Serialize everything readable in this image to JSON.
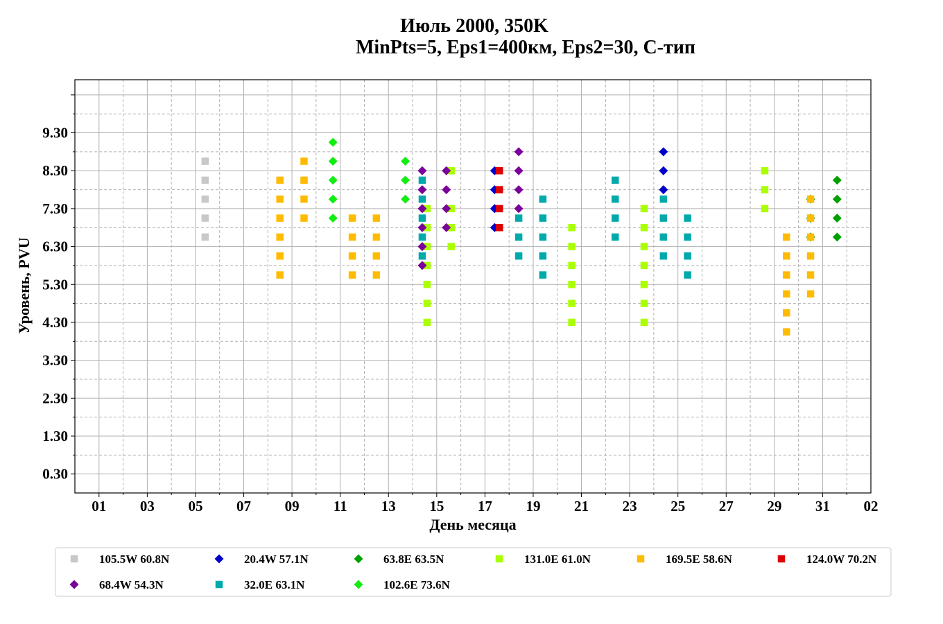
{
  "chart_data": {
    "type": "scatter",
    "title_line1": "Июль 2000, 350K",
    "title_line2": "MinPts=5, Eps1=400км, Eps2=30, С-тип",
    "xlabel": "День месяца",
    "ylabel": "Уровень, PVU",
    "x_ticks": [
      "01",
      "03",
      "05",
      "07",
      "09",
      "11",
      "13",
      "15",
      "17",
      "19",
      "21",
      "23",
      "25",
      "27",
      "29",
      "31",
      "02"
    ],
    "y_ticks": [
      "0.30",
      "1.30",
      "2.30",
      "3.30",
      "4.30",
      "5.30",
      "6.30",
      "7.30",
      "8.30",
      "9.30"
    ],
    "xlim": [
      0,
      33
    ],
    "ylim": [
      -0.2,
      10.7
    ],
    "grid": true,
    "legend_position": "bottom",
    "series": [
      {
        "name": "105.5W 60.8N",
        "marker": "square",
        "color": "#c8c8c8",
        "points": [
          [
            5.4,
            6.55
          ],
          [
            5.4,
            7.05
          ],
          [
            5.4,
            7.55
          ],
          [
            5.4,
            8.05
          ],
          [
            5.4,
            8.55
          ]
        ]
      },
      {
        "name": "20.4W 57.1N",
        "marker": "diamond",
        "color": "#0000cc",
        "points": [
          [
            17.4,
            6.8
          ],
          [
            17.4,
            7.3
          ],
          [
            17.4,
            7.8
          ],
          [
            17.4,
            8.3
          ],
          [
            24.4,
            7.8
          ],
          [
            24.4,
            8.3
          ],
          [
            24.4,
            8.8
          ]
        ]
      },
      {
        "name": "63.8E 63.5N",
        "marker": "diamond",
        "color": "#00a000",
        "points": [
          [
            30.5,
            6.55
          ],
          [
            30.5,
            7.05
          ],
          [
            30.5,
            7.55
          ],
          [
            31.6,
            6.55
          ],
          [
            31.6,
            7.05
          ],
          [
            31.6,
            7.55
          ],
          [
            31.6,
            8.05
          ]
        ]
      },
      {
        "name": "131.0E 61.0N",
        "marker": "square",
        "color": "#aaff00",
        "points": [
          [
            14.6,
            4.3
          ],
          [
            14.6,
            4.8
          ],
          [
            14.6,
            5.3
          ],
          [
            14.6,
            5.8
          ],
          [
            14.6,
            6.3
          ],
          [
            14.6,
            6.8
          ],
          [
            14.6,
            7.3
          ],
          [
            15.6,
            6.3
          ],
          [
            15.6,
            6.8
          ],
          [
            15.6,
            7.3
          ],
          [
            15.6,
            8.3
          ],
          [
            20.6,
            4.3
          ],
          [
            20.6,
            4.8
          ],
          [
            20.6,
            5.3
          ],
          [
            20.6,
            5.8
          ],
          [
            20.6,
            6.3
          ],
          [
            20.6,
            6.8
          ],
          [
            23.6,
            4.3
          ],
          [
            23.6,
            4.8
          ],
          [
            23.6,
            5.3
          ],
          [
            23.6,
            5.8
          ],
          [
            23.6,
            6.3
          ],
          [
            23.6,
            6.8
          ],
          [
            23.6,
            7.3
          ],
          [
            28.6,
            7.3
          ],
          [
            28.6,
            7.8
          ],
          [
            28.6,
            8.3
          ]
        ]
      },
      {
        "name": "169.5E 58.6N",
        "marker": "square",
        "color": "#ffbb00",
        "points": [
          [
            8.5,
            5.55
          ],
          [
            8.5,
            6.05
          ],
          [
            8.5,
            6.55
          ],
          [
            8.5,
            7.05
          ],
          [
            8.5,
            7.55
          ],
          [
            8.5,
            8.05
          ],
          [
            9.5,
            7.05
          ],
          [
            9.5,
            7.55
          ],
          [
            9.5,
            8.05
          ],
          [
            9.5,
            8.55
          ],
          [
            11.5,
            5.55
          ],
          [
            11.5,
            6.05
          ],
          [
            11.5,
            6.55
          ],
          [
            11.5,
            7.05
          ],
          [
            12.5,
            5.55
          ],
          [
            12.5,
            6.05
          ],
          [
            12.5,
            6.55
          ],
          [
            12.5,
            7.05
          ],
          [
            29.5,
            4.05
          ],
          [
            29.5,
            4.55
          ],
          [
            29.5,
            5.05
          ],
          [
            29.5,
            5.55
          ],
          [
            29.5,
            6.05
          ],
          [
            29.5,
            6.55
          ],
          [
            30.5,
            5.05
          ],
          [
            30.5,
            5.55
          ],
          [
            30.5,
            6.05
          ],
          [
            30.5,
            6.55
          ],
          [
            30.5,
            7.05
          ],
          [
            30.5,
            7.55
          ]
        ]
      },
      {
        "name": "124.0W 70.2N",
        "marker": "square",
        "color": "#dd0000",
        "points": [
          [
            17.6,
            6.8
          ],
          [
            17.6,
            7.3
          ],
          [
            17.6,
            7.8
          ],
          [
            17.6,
            8.3
          ]
        ]
      },
      {
        "name": "68.4W 54.3N",
        "marker": "diamond",
        "color": "#7a0099",
        "points": [
          [
            14.4,
            5.8
          ],
          [
            14.4,
            6.3
          ],
          [
            14.4,
            6.8
          ],
          [
            14.4,
            7.3
          ],
          [
            14.4,
            7.8
          ],
          [
            14.4,
            8.3
          ],
          [
            15.4,
            6.8
          ],
          [
            15.4,
            7.3
          ],
          [
            15.4,
            7.8
          ],
          [
            15.4,
            8.3
          ],
          [
            18.4,
            7.3
          ],
          [
            18.4,
            7.8
          ],
          [
            18.4,
            8.3
          ],
          [
            18.4,
            8.8
          ]
        ]
      },
      {
        "name": "32.0E 63.1N",
        "marker": "square",
        "color": "#00aaaa",
        "points": [
          [
            14.4,
            6.05
          ],
          [
            14.4,
            6.55
          ],
          [
            14.4,
            7.05
          ],
          [
            14.4,
            7.55
          ],
          [
            14.4,
            8.05
          ],
          [
            18.4,
            6.05
          ],
          [
            18.4,
            6.55
          ],
          [
            18.4,
            7.05
          ],
          [
            19.4,
            5.55
          ],
          [
            19.4,
            6.05
          ],
          [
            19.4,
            6.55
          ],
          [
            19.4,
            7.05
          ],
          [
            19.4,
            7.55
          ],
          [
            22.4,
            6.55
          ],
          [
            22.4,
            7.05
          ],
          [
            22.4,
            7.55
          ],
          [
            22.4,
            8.05
          ],
          [
            24.4,
            6.05
          ],
          [
            24.4,
            6.55
          ],
          [
            24.4,
            7.05
          ],
          [
            24.4,
            7.55
          ],
          [
            25.4,
            5.55
          ],
          [
            25.4,
            6.05
          ],
          [
            25.4,
            6.55
          ],
          [
            25.4,
            7.05
          ]
        ]
      },
      {
        "name": "102.6E 73.6N",
        "marker": "diamond",
        "color": "#11ee11",
        "points": [
          [
            10.7,
            7.05
          ],
          [
            10.7,
            7.55
          ],
          [
            10.7,
            8.05
          ],
          [
            10.7,
            8.55
          ],
          [
            10.7,
            9.05
          ],
          [
            13.7,
            7.55
          ],
          [
            13.7,
            8.05
          ],
          [
            13.7,
            8.55
          ]
        ]
      }
    ]
  }
}
